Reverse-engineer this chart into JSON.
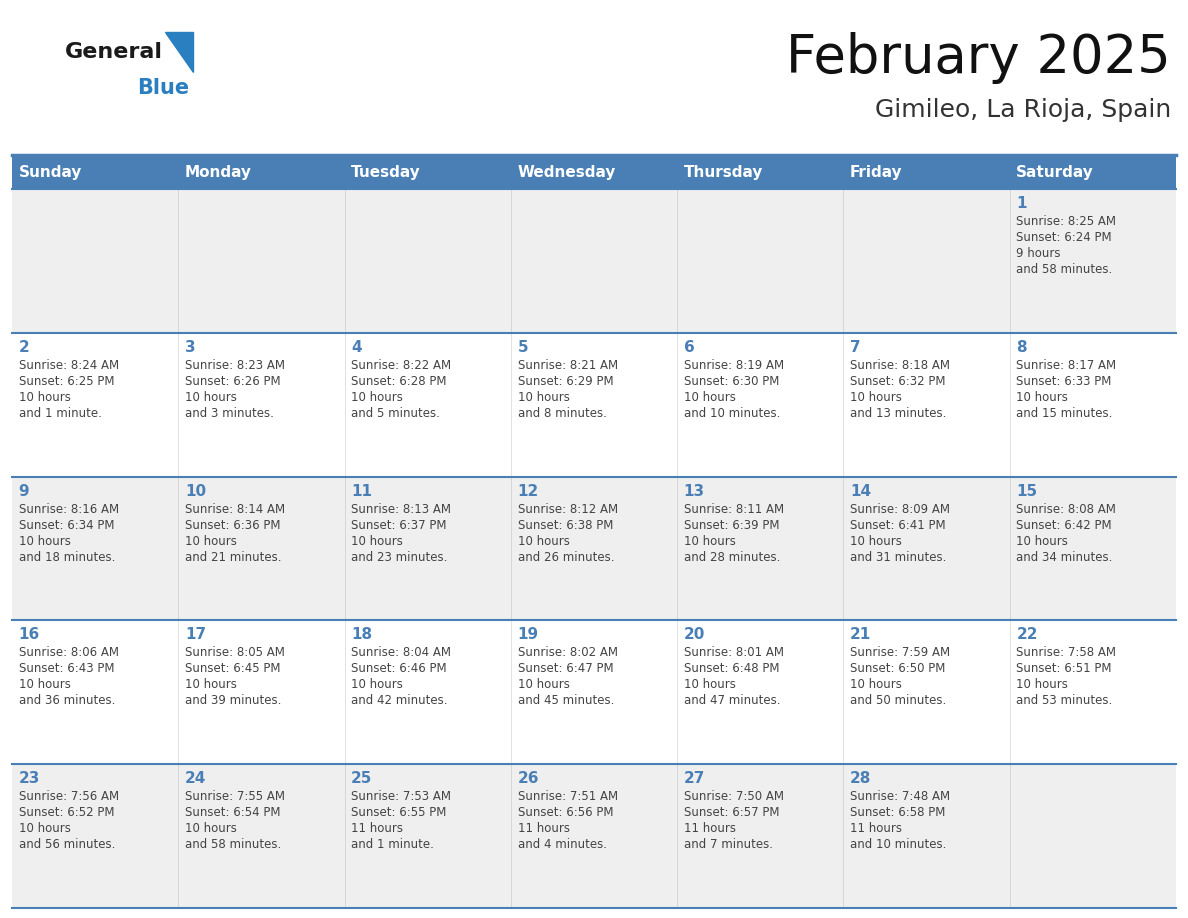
{
  "title": "February 2025",
  "subtitle": "Gimileo, La Rioja, Spain",
  "days_of_week": [
    "Sunday",
    "Monday",
    "Tuesday",
    "Wednesday",
    "Thursday",
    "Friday",
    "Saturday"
  ],
  "header_bg": "#4a7fb5",
  "header_text": "#ffffff",
  "row0_bg": "#efefef",
  "row1_bg": "#ffffff",
  "border_color": "#4a7fb5",
  "day_number_color": "#4a7fb5",
  "text_color": "#444444",
  "logo_general_color": "#1a1a1a",
  "logo_blue_color": "#2a7fc1",
  "weeks": [
    [
      null,
      null,
      null,
      null,
      null,
      null,
      {
        "day": 1,
        "sunrise": "8:25 AM",
        "sunset": "6:24 PM",
        "daylight": "9 hours\nand 58 minutes."
      }
    ],
    [
      {
        "day": 2,
        "sunrise": "8:24 AM",
        "sunset": "6:25 PM",
        "daylight": "10 hours\nand 1 minute."
      },
      {
        "day": 3,
        "sunrise": "8:23 AM",
        "sunset": "6:26 PM",
        "daylight": "10 hours\nand 3 minutes."
      },
      {
        "day": 4,
        "sunrise": "8:22 AM",
        "sunset": "6:28 PM",
        "daylight": "10 hours\nand 5 minutes."
      },
      {
        "day": 5,
        "sunrise": "8:21 AM",
        "sunset": "6:29 PM",
        "daylight": "10 hours\nand 8 minutes."
      },
      {
        "day": 6,
        "sunrise": "8:19 AM",
        "sunset": "6:30 PM",
        "daylight": "10 hours\nand 10 minutes."
      },
      {
        "day": 7,
        "sunrise": "8:18 AM",
        "sunset": "6:32 PM",
        "daylight": "10 hours\nand 13 minutes."
      },
      {
        "day": 8,
        "sunrise": "8:17 AM",
        "sunset": "6:33 PM",
        "daylight": "10 hours\nand 15 minutes."
      }
    ],
    [
      {
        "day": 9,
        "sunrise": "8:16 AM",
        "sunset": "6:34 PM",
        "daylight": "10 hours\nand 18 minutes."
      },
      {
        "day": 10,
        "sunrise": "8:14 AM",
        "sunset": "6:36 PM",
        "daylight": "10 hours\nand 21 minutes."
      },
      {
        "day": 11,
        "sunrise": "8:13 AM",
        "sunset": "6:37 PM",
        "daylight": "10 hours\nand 23 minutes."
      },
      {
        "day": 12,
        "sunrise": "8:12 AM",
        "sunset": "6:38 PM",
        "daylight": "10 hours\nand 26 minutes."
      },
      {
        "day": 13,
        "sunrise": "8:11 AM",
        "sunset": "6:39 PM",
        "daylight": "10 hours\nand 28 minutes."
      },
      {
        "day": 14,
        "sunrise": "8:09 AM",
        "sunset": "6:41 PM",
        "daylight": "10 hours\nand 31 minutes."
      },
      {
        "day": 15,
        "sunrise": "8:08 AM",
        "sunset": "6:42 PM",
        "daylight": "10 hours\nand 34 minutes."
      }
    ],
    [
      {
        "day": 16,
        "sunrise": "8:06 AM",
        "sunset": "6:43 PM",
        "daylight": "10 hours\nand 36 minutes."
      },
      {
        "day": 17,
        "sunrise": "8:05 AM",
        "sunset": "6:45 PM",
        "daylight": "10 hours\nand 39 minutes."
      },
      {
        "day": 18,
        "sunrise": "8:04 AM",
        "sunset": "6:46 PM",
        "daylight": "10 hours\nand 42 minutes."
      },
      {
        "day": 19,
        "sunrise": "8:02 AM",
        "sunset": "6:47 PM",
        "daylight": "10 hours\nand 45 minutes."
      },
      {
        "day": 20,
        "sunrise": "8:01 AM",
        "sunset": "6:48 PM",
        "daylight": "10 hours\nand 47 minutes."
      },
      {
        "day": 21,
        "sunrise": "7:59 AM",
        "sunset": "6:50 PM",
        "daylight": "10 hours\nand 50 minutes."
      },
      {
        "day": 22,
        "sunrise": "7:58 AM",
        "sunset": "6:51 PM",
        "daylight": "10 hours\nand 53 minutes."
      }
    ],
    [
      {
        "day": 23,
        "sunrise": "7:56 AM",
        "sunset": "6:52 PM",
        "daylight": "10 hours\nand 56 minutes."
      },
      {
        "day": 24,
        "sunrise": "7:55 AM",
        "sunset": "6:54 PM",
        "daylight": "10 hours\nand 58 minutes."
      },
      {
        "day": 25,
        "sunrise": "7:53 AM",
        "sunset": "6:55 PM",
        "daylight": "11 hours\nand 1 minute."
      },
      {
        "day": 26,
        "sunrise": "7:51 AM",
        "sunset": "6:56 PM",
        "daylight": "11 hours\nand 4 minutes."
      },
      {
        "day": 27,
        "sunrise": "7:50 AM",
        "sunset": "6:57 PM",
        "daylight": "11 hours\nand 7 minutes."
      },
      {
        "day": 28,
        "sunrise": "7:48 AM",
        "sunset": "6:58 PM",
        "daylight": "11 hours\nand 10 minutes."
      },
      null
    ]
  ]
}
